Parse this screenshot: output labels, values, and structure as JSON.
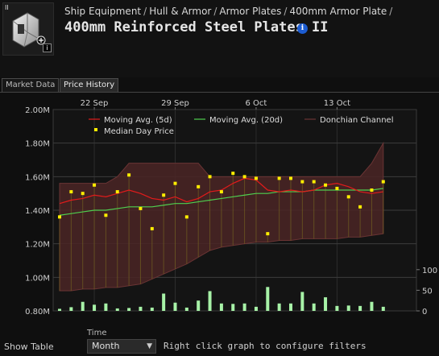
{
  "breadcrumb": [
    "Ship Equipment",
    "Hull & Armor",
    "Armor Plates",
    "400mm Armor Plate"
  ],
  "title": "400mm Reinforced Steel Plates II",
  "icons": {
    "item": "armor-plate-icon",
    "info": "info-icon",
    "dropdown": "chevron-down-icon"
  },
  "tabs": [
    {
      "label": "Market Data",
      "active": false
    },
    {
      "label": "Price History",
      "active": true
    }
  ],
  "chart_data": {
    "type": "line",
    "x_tick_labels": [
      "22 Sep",
      "29 Sep",
      "6 Oct",
      "13 Oct"
    ],
    "y_tick_labels": [
      "2.00M",
      "1.80M",
      "1.60M",
      "1.40M",
      "1.20M",
      "1.00M",
      "0.80M"
    ],
    "ylim": [
      0.8,
      2.0
    ],
    "volume_tick_labels": [
      "100",
      "50",
      "0"
    ],
    "volume_ylim": [
      0,
      125
    ],
    "legend": {
      "ma5": "Moving Avg. (5d)",
      "ma20": "Moving Avg. (20d)",
      "donchian": "Donchian Channel",
      "median": "Median Day Price"
    },
    "colors": {
      "ma5": "#e21b1b",
      "ma20": "#4fcf4f",
      "median": "#ffee00",
      "volume": "#a7f2a7",
      "donchian": "#4a2424"
    },
    "median_day_price": [
      1.36,
      1.51,
      1.5,
      1.55,
      1.37,
      1.51,
      1.61,
      1.41,
      1.29,
      1.49,
      1.56,
      1.36,
      1.54,
      1.6,
      1.51,
      1.62,
      1.6,
      1.59,
      1.26,
      1.59,
      1.59,
      1.57,
      1.57,
      1.55,
      1.53,
      1.48,
      1.42,
      1.52,
      1.57
    ],
    "ma5": [
      1.44,
      1.46,
      1.47,
      1.49,
      1.48,
      1.5,
      1.52,
      1.5,
      1.47,
      1.46,
      1.48,
      1.45,
      1.47,
      1.51,
      1.52,
      1.56,
      1.59,
      1.58,
      1.52,
      1.51,
      1.52,
      1.51,
      1.52,
      1.55,
      1.56,
      1.54,
      1.51,
      1.5,
      1.51
    ],
    "ma20": [
      1.37,
      1.38,
      1.39,
      1.4,
      1.4,
      1.41,
      1.42,
      1.42,
      1.42,
      1.43,
      1.44,
      1.44,
      1.45,
      1.46,
      1.47,
      1.48,
      1.49,
      1.5,
      1.5,
      1.51,
      1.51,
      1.51,
      1.52,
      1.52,
      1.52,
      1.52,
      1.52,
      1.52,
      1.53
    ],
    "donchian_upper": [
      1.56,
      1.56,
      1.56,
      1.56,
      1.56,
      1.6,
      1.68,
      1.68,
      1.68,
      1.68,
      1.68,
      1.68,
      1.68,
      1.6,
      1.6,
      1.6,
      1.6,
      1.6,
      1.6,
      1.6,
      1.6,
      1.6,
      1.6,
      1.6,
      1.6,
      1.6,
      1.6,
      1.68,
      1.8
    ],
    "donchian_lower": [
      0.92,
      0.92,
      0.93,
      0.93,
      0.94,
      0.94,
      0.95,
      0.96,
      0.99,
      1.02,
      1.05,
      1.08,
      1.12,
      1.16,
      1.18,
      1.19,
      1.2,
      1.21,
      1.21,
      1.22,
      1.22,
      1.23,
      1.23,
      1.23,
      1.23,
      1.24,
      1.24,
      1.25,
      1.26
    ],
    "volume": [
      5,
      9,
      22,
      15,
      18,
      6,
      7,
      10,
      8,
      42,
      20,
      8,
      25,
      48,
      18,
      17,
      18,
      10,
      58,
      18,
      18,
      46,
      18,
      33,
      12,
      13,
      12,
      22,
      10
    ]
  },
  "bottom": {
    "show_table": "Show Table",
    "time_label": "Time",
    "time_value": "Month",
    "hint": "Right click graph to configure filters"
  }
}
